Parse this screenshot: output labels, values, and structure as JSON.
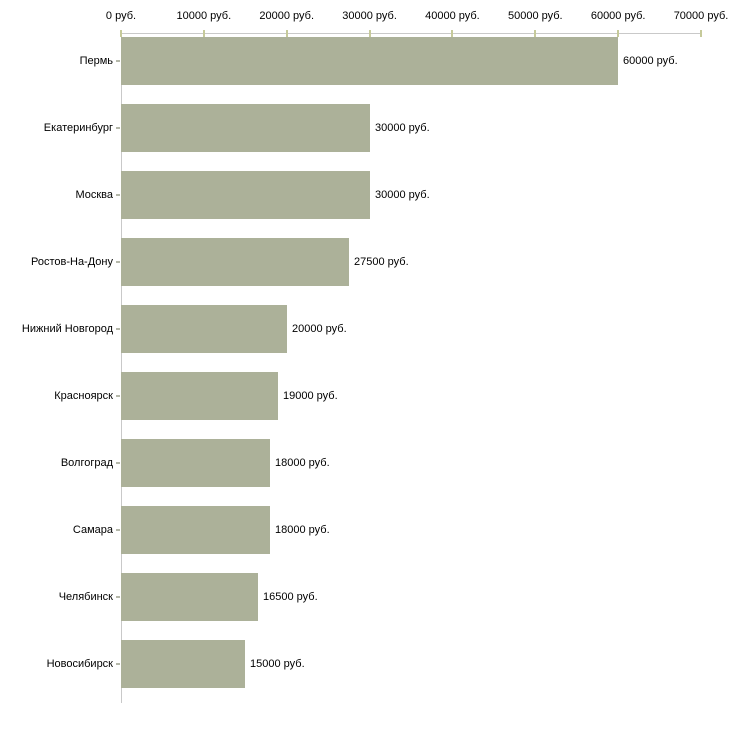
{
  "chart_data": {
    "type": "bar",
    "orientation": "horizontal",
    "title": "",
    "xlabel": "",
    "ylabel": "",
    "categories": [
      "Пермь",
      "Екатеринбург",
      "Москва",
      "Ростов-На-Дону",
      "Нижний Новгород",
      "Красноярск",
      "Волгоград",
      "Самара",
      "Челябинск",
      "Новосибирск"
    ],
    "values": [
      60000,
      30000,
      30000,
      27500,
      20000,
      19000,
      18000,
      18000,
      16500,
      15000
    ],
    "value_labels": [
      "60000 руб.",
      "30000 руб.",
      "30000 руб.",
      "27500 руб.",
      "20000 руб.",
      "19000 руб.",
      "18000 руб.",
      "18000 руб.",
      "16500 руб.",
      "15000 руб."
    ],
    "x_axis": {
      "position": "top",
      "min": 0,
      "max": 70000,
      "tick_step": 10000,
      "tick_labels": [
        "0 руб.",
        "10000 руб.",
        "20000 руб.",
        "30000 руб.",
        "40000 руб.",
        "50000 руб.",
        "60000 руб.",
        "70000 руб."
      ]
    },
    "grid": false,
    "legend": false,
    "colors": {
      "background": "#ffffff",
      "bar": "#acb199",
      "axis_line": "#c9c9c9",
      "axis_tick": "#c6ca9a",
      "category_tick": "#b4b7a9",
      "text": "#000000"
    }
  }
}
